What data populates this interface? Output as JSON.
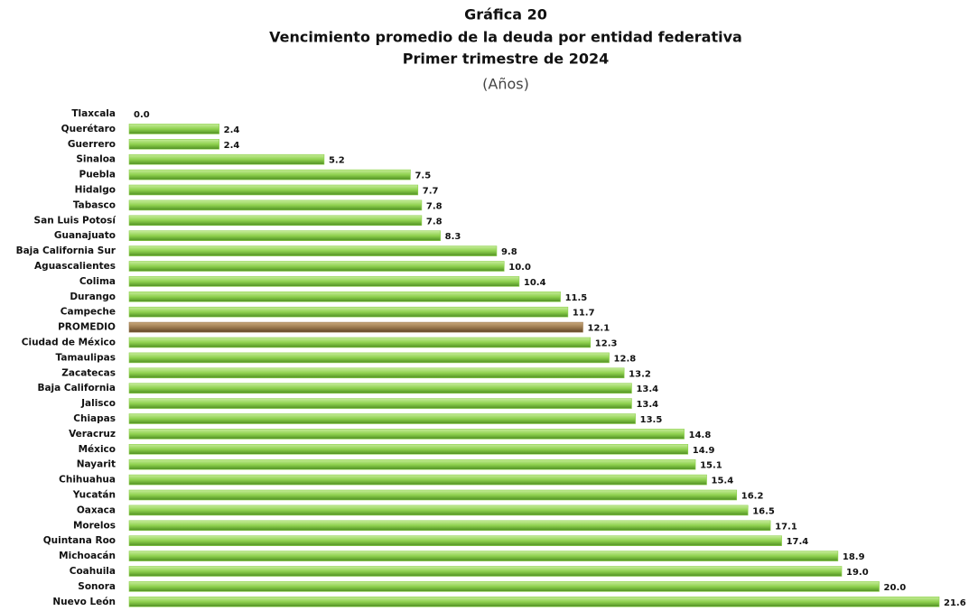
{
  "chart_data": {
    "type": "barh",
    "title": "Gráfica 20",
    "title_line2": "Vencimiento promedio de la deuda por entidad federativa",
    "title_line3": "Primer trimestre de 2024",
    "subtitle": "(Años)",
    "categories": [
      "Tlaxcala",
      "Querétaro",
      "Guerrero",
      "Sinaloa",
      "Puebla",
      "Hidalgo",
      "Tabasco",
      "San Luis Potosí",
      "Guanajuato",
      "Baja California Sur",
      "Aguascalientes",
      "Colima",
      "Durango",
      "Campeche",
      "PROMEDIO",
      "Ciudad de México",
      "Tamaulipas",
      "Zacatecas",
      "Baja California",
      "Jalisco",
      "Chiapas",
      "Veracruz",
      "México",
      "Nayarit",
      "Chihuahua",
      "Yucatán",
      "Oaxaca",
      "Morelos",
      "Quintana Roo",
      "Michoacán",
      "Coahuila",
      "Sonora",
      "Nuevo León"
    ],
    "values": [
      0.0,
      2.4,
      2.4,
      5.2,
      7.5,
      7.7,
      7.8,
      7.8,
      8.3,
      9.8,
      10.0,
      10.4,
      11.5,
      11.7,
      12.1,
      12.3,
      12.8,
      13.2,
      13.4,
      13.4,
      13.5,
      14.8,
      14.9,
      15.1,
      15.4,
      16.2,
      16.5,
      17.1,
      17.4,
      18.9,
      19.0,
      20.0,
      21.6
    ],
    "value_labels": [
      "0.0",
      "2.4",
      "2.4",
      "5.2",
      "7.5",
      "7.7",
      "7.8",
      "7.8",
      "8.3",
      "9.8",
      "10.0",
      "10.4",
      "11.5",
      "11.7",
      "12.1",
      "12.3",
      "12.8",
      "13.2",
      "13.4",
      "13.4",
      "13.5",
      "14.8",
      "14.9",
      "15.1",
      "15.4",
      "16.2",
      "16.5",
      "17.1",
      "17.4",
      "18.9",
      "19.0",
      "20.0",
      "21.6"
    ],
    "color": "#8fd14f",
    "highlight_index": 14,
    "highlight_color": "#9c7a4f"
  }
}
